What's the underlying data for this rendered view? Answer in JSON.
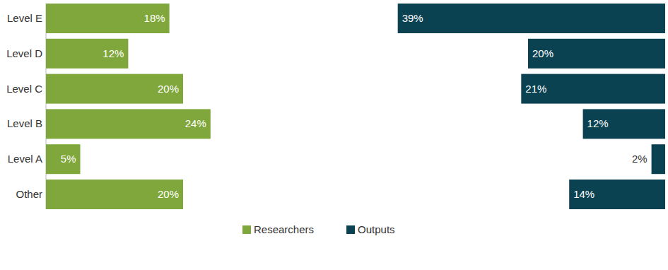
{
  "chart_data": {
    "type": "bar",
    "orientation": "horizontal",
    "categories": [
      "Level E",
      "Level D",
      "Level C",
      "Level B",
      "Level A",
      "Other"
    ],
    "series": [
      {
        "name": "Researchers",
        "color": "#7fa73c",
        "values": [
          18,
          12,
          20,
          24,
          5,
          20
        ],
        "value_labels": [
          "18%",
          "12%",
          "20%",
          "24%",
          "5%",
          "20%"
        ]
      },
      {
        "name": "Outputs",
        "color": "#0b4252",
        "values": [
          39,
          20,
          21,
          12,
          2,
          14
        ],
        "value_labels": [
          "39%",
          "20%",
          "21%",
          "12%",
          "2%",
          "14%"
        ]
      }
    ],
    "xlim": [
      0,
      40
    ],
    "data_labels": true,
    "tick_labels": "y",
    "grid": false,
    "legend": "bottom"
  }
}
